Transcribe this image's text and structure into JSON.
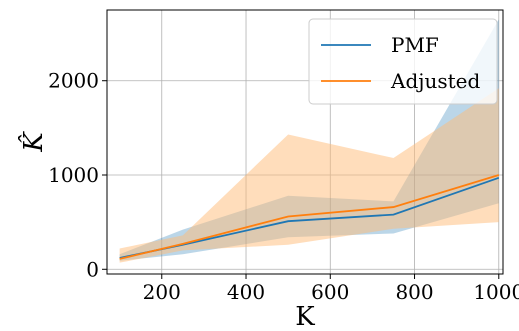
{
  "chart_data": {
    "type": "line",
    "xlabel": "K",
    "ylabel": "K̂",
    "xlim": [
      70,
      1010
    ],
    "ylim": [
      -50,
      2750
    ],
    "xticks": [
      200,
      400,
      600,
      800,
      1000
    ],
    "yticks": [
      0,
      1000,
      2000
    ],
    "grid": true,
    "legend_position": "top-right",
    "x": [
      100,
      250,
      500,
      750,
      1000
    ],
    "series": [
      {
        "name": "PMF",
        "color": "#1f77b4",
        "band_color": "#1f77b4",
        "values": [
          120,
          260,
          510,
          580,
          970
        ],
        "lower": [
          90,
          160,
          340,
          380,
          700
        ],
        "upper": [
          160,
          420,
          780,
          720,
          2650
        ]
      },
      {
        "name": "Adjusted",
        "color": "#ff7f0e",
        "band_color": "#ffbb78",
        "values": [
          110,
          270,
          560,
          660,
          1000
        ],
        "lower": [
          70,
          200,
          260,
          430,
          500
        ],
        "upper": [
          220,
          360,
          1430,
          1180,
          1920
        ]
      }
    ]
  }
}
